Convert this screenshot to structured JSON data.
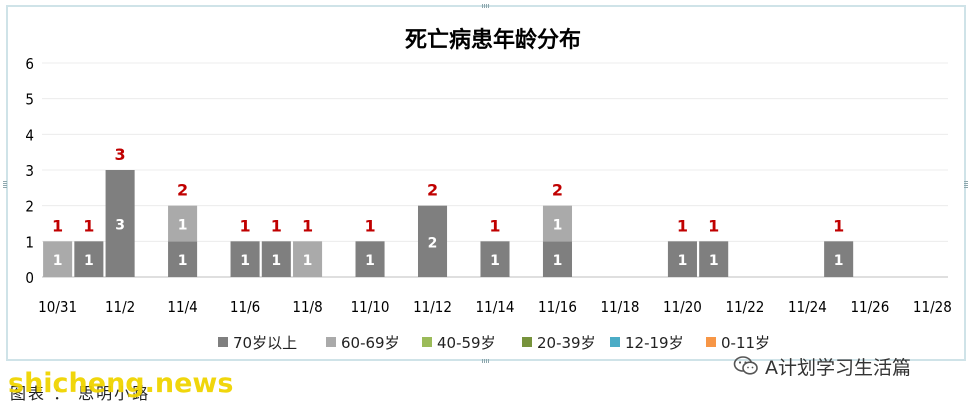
{
  "chart_data": {
    "type": "bar",
    "title": "死亡病患年龄分布",
    "categories": [
      "10/31",
      "11/1",
      "11/2",
      "11/3",
      "11/4",
      "11/5",
      "11/6",
      "11/7",
      "11/8",
      "11/9",
      "11/10",
      "11/11",
      "11/12",
      "11/13",
      "11/14",
      "11/15",
      "11/16",
      "11/17",
      "11/18",
      "11/19",
      "11/20",
      "11/21",
      "11/22",
      "11/23",
      "11/24",
      "11/25",
      "11/26",
      "11/27",
      "11/28"
    ],
    "tick_labels": [
      "10/31",
      "11/2",
      "11/4",
      "11/6",
      "11/8",
      "11/10",
      "11/12",
      "11/14",
      "11/16",
      "11/18",
      "11/20",
      "11/22",
      "11/24",
      "11/26",
      "11/28"
    ],
    "ylim": [
      0,
      6
    ],
    "yticks": [
      0,
      1,
      2,
      3,
      4,
      5,
      6
    ],
    "stacked": true,
    "series": [
      {
        "name": "70岁以上",
        "color": "#7f7f7f",
        "values": [
          0,
          1,
          3,
          0,
          1,
          0,
          1,
          1,
          0,
          0,
          1,
          0,
          2,
          0,
          1,
          0,
          1,
          0,
          0,
          0,
          1,
          1,
          0,
          0,
          0,
          1,
          0,
          0,
          0
        ]
      },
      {
        "name": "60-69岁",
        "color": "#aaaaaa",
        "values": [
          1,
          0,
          0,
          0,
          1,
          0,
          0,
          0,
          1,
          0,
          0,
          0,
          0,
          0,
          0,
          0,
          1,
          0,
          0,
          0,
          0,
          0,
          0,
          0,
          0,
          0,
          0,
          0,
          0
        ]
      },
      {
        "name": "40-59岁",
        "color": "#9bbb59",
        "values": [
          0,
          0,
          0,
          0,
          0,
          0,
          0,
          0,
          0,
          0,
          0,
          0,
          0,
          0,
          0,
          0,
          0,
          0,
          0,
          0,
          0,
          0,
          0,
          0,
          0,
          0,
          0,
          0,
          0
        ]
      },
      {
        "name": "20-39岁",
        "color": "#77933c",
        "values": [
          0,
          0,
          0,
          0,
          0,
          0,
          0,
          0,
          0,
          0,
          0,
          0,
          0,
          0,
          0,
          0,
          0,
          0,
          0,
          0,
          0,
          0,
          0,
          0,
          0,
          0,
          0,
          0,
          0
        ]
      },
      {
        "name": "12-19岁",
        "color": "#4bacc6",
        "values": [
          0,
          0,
          0,
          0,
          0,
          0,
          0,
          0,
          0,
          0,
          0,
          0,
          0,
          0,
          0,
          0,
          0,
          0,
          0,
          0,
          0,
          0,
          0,
          0,
          0,
          0,
          0,
          0,
          0
        ]
      },
      {
        "name": "0-11岁",
        "color": "#f79646",
        "values": [
          0,
          0,
          0,
          0,
          0,
          0,
          0,
          0,
          0,
          0,
          0,
          0,
          0,
          0,
          0,
          0,
          0,
          0,
          0,
          0,
          0,
          0,
          0,
          0,
          0,
          0,
          0,
          0,
          0
        ]
      }
    ],
    "totals": [
      1,
      1,
      3,
      0,
      2,
      0,
      1,
      1,
      1,
      0,
      1,
      0,
      2,
      0,
      1,
      0,
      2,
      0,
      0,
      0,
      1,
      1,
      0,
      0,
      0,
      1,
      0,
      0,
      0
    ],
    "total_label_color": "#c00000",
    "legend_position": "bottom",
    "grid": true
  },
  "caption": "图表 ： 思明小路",
  "watermark": "shicheng.news",
  "account": {
    "name": "A计划学习生活篇",
    "icon": "wechat-icon"
  }
}
